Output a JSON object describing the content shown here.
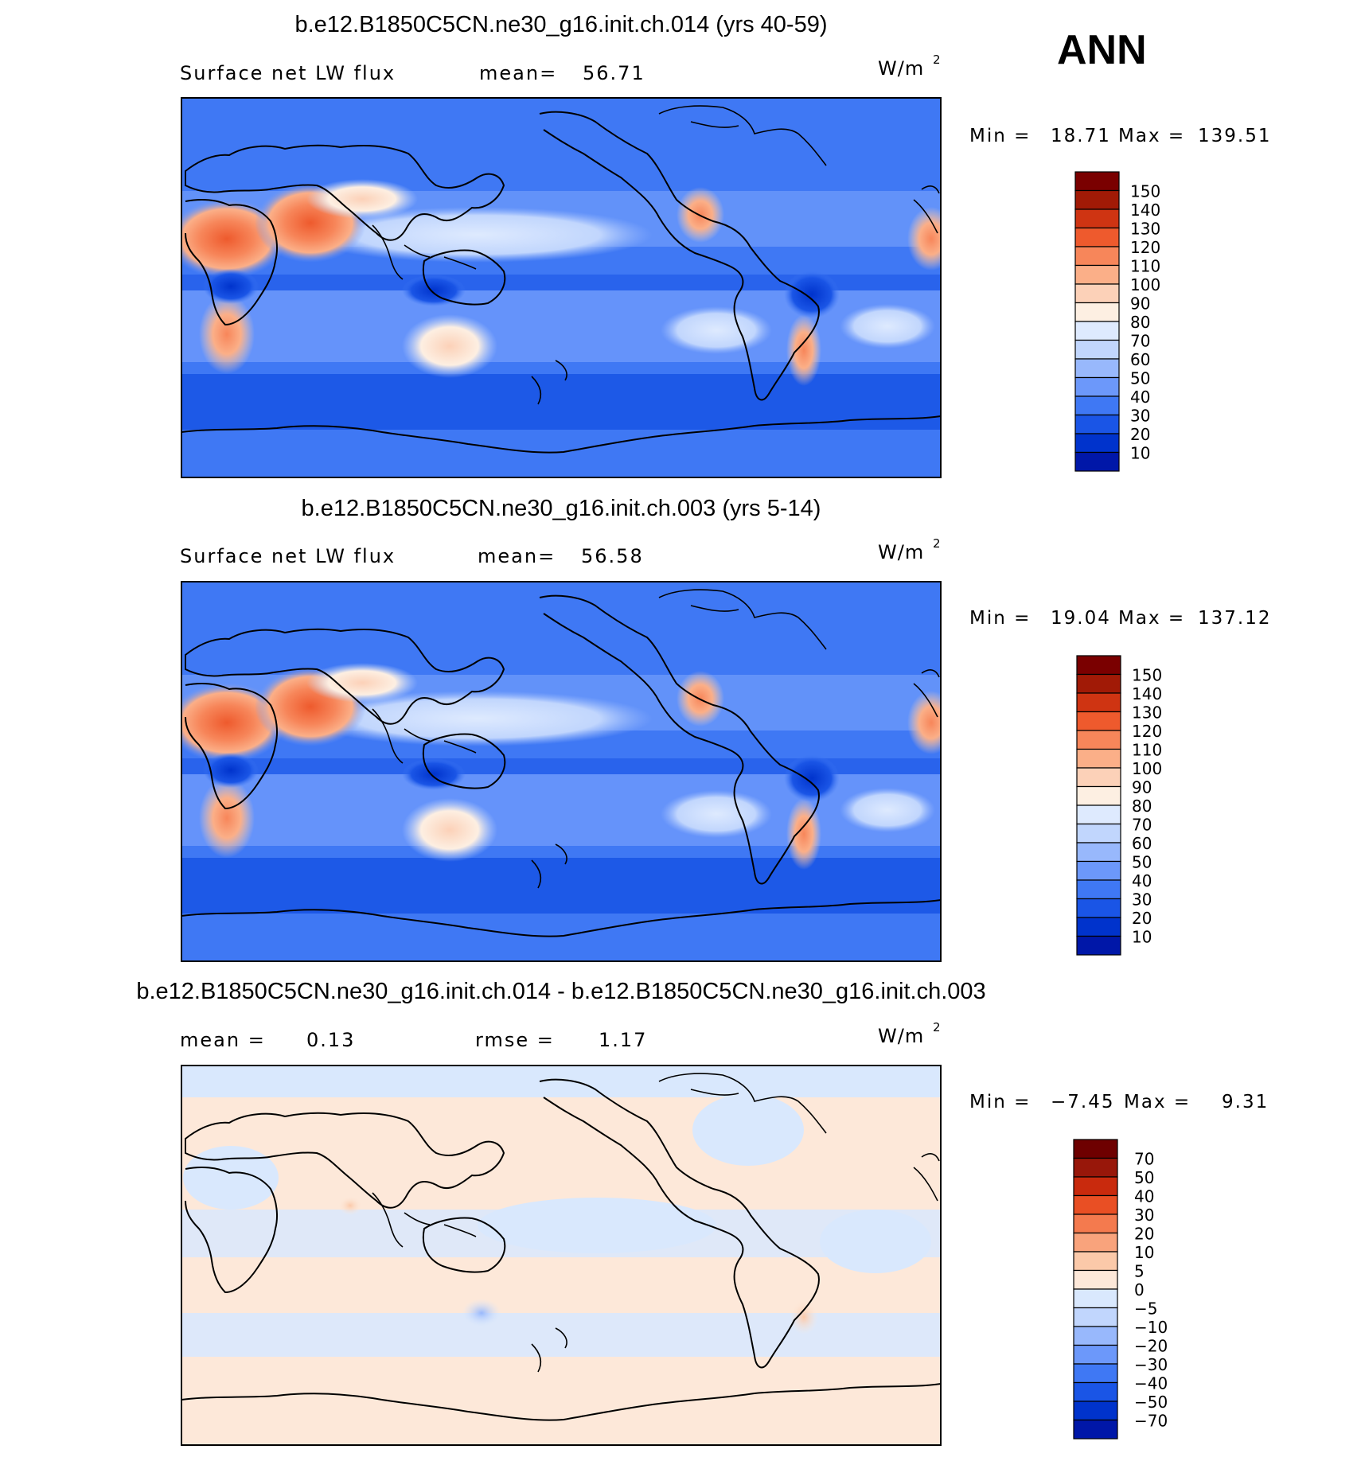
{
  "season_label": "ANN",
  "unit_prefix": "W/m",
  "unit_exponent": "2",
  "colors": {
    "abs_scale": [
      "#00007f",
      "#0017a8",
      "#0033cc",
      "#1a55e6",
      "#3f78f4",
      "#6c98fa",
      "#98b8fc",
      "#c1d6fd",
      "#deeafe",
      "#fdefe2",
      "#fcd1b8",
      "#fbaf88",
      "#f7865a",
      "#ee5a2d",
      "#cf3412",
      "#a11a06",
      "#7a0000"
    ],
    "diff_scale": [
      "#00007f",
      "#0017a8",
      "#0033cc",
      "#1a55e6",
      "#3f78f4",
      "#6c98fa",
      "#98b8fc",
      "#c1d6fd",
      "#d9e8fd",
      "#fde8d9",
      "#fbc9a9",
      "#f9a37c",
      "#f47a4e",
      "#e94f24",
      "#c92a0d",
      "#98170a",
      "#6e0000"
    ]
  },
  "chart_data": [
    {
      "type": "heatmap",
      "title": "b.e12.B1850C5CN.ne30_g16.init.ch.014 (yrs 40-59)",
      "left_label": "Surface net LW flux",
      "stat1_label": "mean=",
      "stat1_value": "56.71",
      "min_label": "Min =",
      "min_value": "18.71",
      "max_label": "Max =",
      "max_value": "139.51",
      "unit": "W/m2",
      "colorbar_levels": [
        "150",
        "140",
        "130",
        "120",
        "110",
        "100",
        "90",
        "80",
        "70",
        "60",
        "50",
        "40",
        "30",
        "20",
        "10"
      ]
    },
    {
      "type": "heatmap",
      "title": "b.e12.B1850C5CN.ne30_g16.init.ch.003 (yrs 5-14)",
      "left_label": "Surface net LW flux",
      "stat1_label": "mean=",
      "stat1_value": "56.58",
      "min_label": "Min =",
      "min_value": "19.04",
      "max_label": "Max =",
      "max_value": "137.12",
      "unit": "W/m2",
      "colorbar_levels": [
        "150",
        "140",
        "130",
        "120",
        "110",
        "100",
        "90",
        "80",
        "70",
        "60",
        "50",
        "40",
        "30",
        "20",
        "10"
      ]
    },
    {
      "type": "heatmap",
      "title": "b.e12.B1850C5CN.ne30_g16.init.ch.014 - b.e12.B1850C5CN.ne30_g16.init.ch.003",
      "left_label": "mean =",
      "left_value": "0.13",
      "stat1_label": "rmse =",
      "stat1_value": "1.17",
      "min_label": "Min =",
      "min_value": "−7.45",
      "max_label": "Max =",
      "max_value": "9.31",
      "unit": "W/m2",
      "colorbar_levels": [
        "70",
        "50",
        "40",
        "30",
        "20",
        "10",
        "5",
        "0",
        "−5",
        "−10",
        "−20",
        "−30",
        "−40",
        "−50",
        "−70"
      ]
    }
  ]
}
